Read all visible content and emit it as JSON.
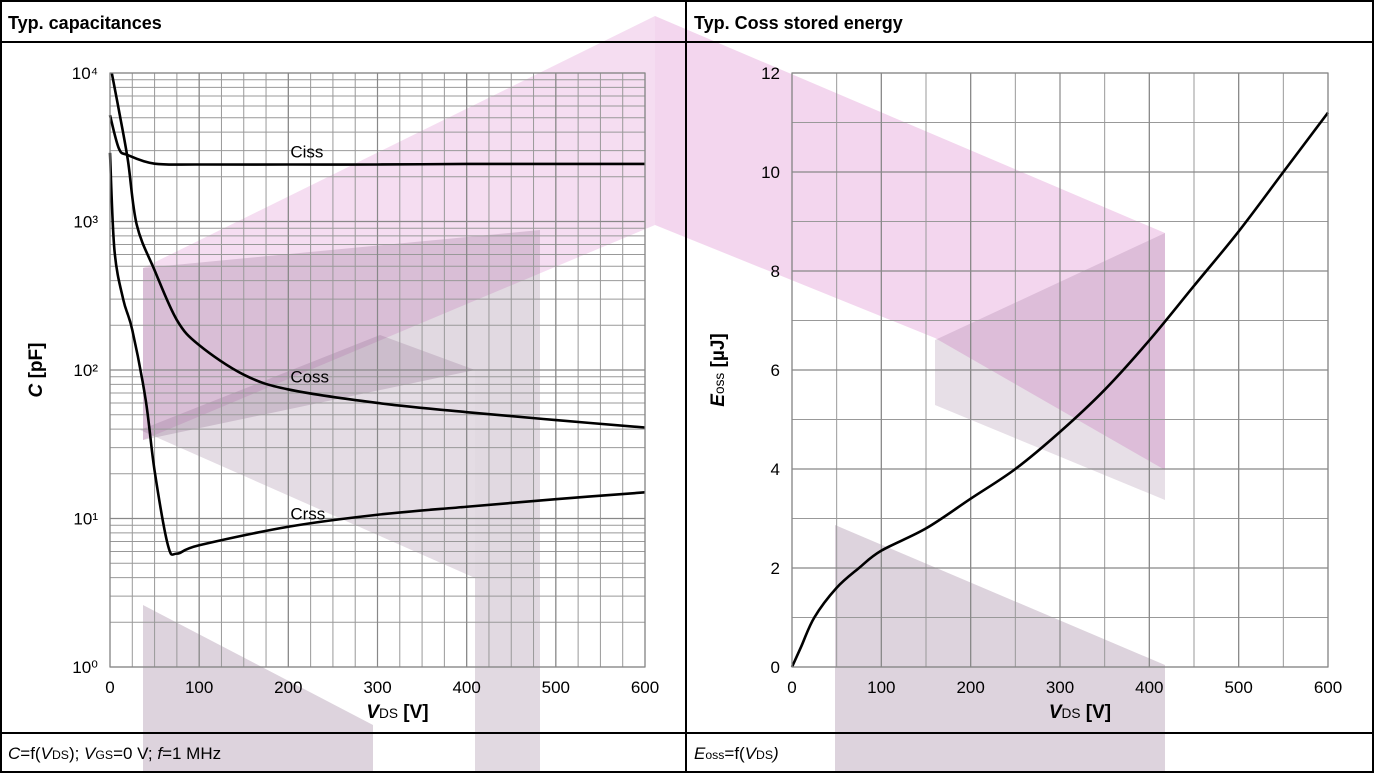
{
  "chart_data": [
    {
      "type": "line",
      "title": "Typ. capacitances",
      "footer": [
        {
          "text": "C",
          "italic": true
        },
        {
          "text": "=f("
        },
        {
          "text": "V",
          "italic": true
        },
        {
          "text": "DS",
          "sub": true
        },
        {
          "text": "); "
        },
        {
          "text": "V",
          "italic": true
        },
        {
          "text": "GS",
          "sub": true
        },
        {
          "text": "=0 V; "
        },
        {
          "text": "f",
          "italic": true
        },
        {
          "text": "=1 MHz"
        }
      ],
      "xlabel": [
        {
          "text": "V",
          "italic": true
        },
        {
          "text": "DS",
          "sub": true
        },
        {
          "text": " [V]"
        }
      ],
      "ylabel": [
        {
          "text": "C",
          "italic": true
        },
        {
          "text": " [pF]"
        }
      ],
      "yscale": "log",
      "xlim": [
        0,
        600
      ],
      "ylim": [
        1,
        10000
      ],
      "xticks": [
        0,
        100,
        200,
        300,
        400,
        500,
        600
      ],
      "yticks": [
        {
          "value": 1,
          "label": "10⁰"
        },
        {
          "value": 10,
          "label": "10¹"
        },
        {
          "value": 100,
          "label": "10²"
        },
        {
          "value": 1000,
          "label": "10³"
        },
        {
          "value": 10000,
          "label": "10⁴"
        }
      ],
      "xgrid": [
        0,
        25,
        50,
        75,
        100,
        125,
        150,
        175,
        200,
        225,
        250,
        275,
        300,
        325,
        350,
        375,
        400,
        425,
        450,
        475,
        500,
        525,
        550,
        575,
        600
      ],
      "ygrid": [
        2,
        3,
        4,
        5,
        6,
        7,
        8,
        9,
        20,
        30,
        40,
        50,
        60,
        70,
        80,
        90,
        200,
        300,
        400,
        500,
        600,
        700,
        800,
        900,
        2000,
        3000,
        4000,
        5000,
        6000,
        7000,
        8000,
        9000
      ],
      "series": [
        {
          "name": "Ciss",
          "color": "#000000",
          "x": [
            0,
            10,
            20,
            50,
            100,
            200,
            300,
            400,
            500,
            600
          ],
          "values": [
            5200,
            3100,
            2800,
            2450,
            2420,
            2420,
            2420,
            2440,
            2440,
            2440
          ]
        },
        {
          "name": "Coss",
          "color": "#000000",
          "x": [
            2,
            10,
            20,
            30,
            50,
            75,
            100,
            150,
            200,
            300,
            400,
            500,
            600
          ],
          "values": [
            10000,
            5600,
            2600,
            950,
            470,
            217,
            147,
            93,
            74,
            60,
            52,
            46,
            41
          ]
        },
        {
          "name": "Crss",
          "color": "#000000",
          "x": [
            0,
            5,
            15,
            25,
            40,
            50,
            65,
            75,
            100,
            200,
            300,
            400,
            500,
            600
          ],
          "values": [
            2900,
            640,
            296,
            186,
            63,
            21,
            6.6,
            5.8,
            6.6,
            8.8,
            10.6,
            12,
            13.5,
            15
          ]
        }
      ]
    },
    {
      "type": "line",
      "title": "Typ. Coss stored energy",
      "footer": [
        {
          "text": "E",
          "italic": true
        },
        {
          "text": "oss",
          "sub": true
        },
        {
          "text": "=f("
        },
        {
          "text": "V",
          "italic": true
        },
        {
          "text": "DS",
          "sub": true
        },
        {
          "text": ")",
          "italic": true
        }
      ],
      "xlabel": [
        {
          "text": "V",
          "italic": true
        },
        {
          "text": "DS",
          "sub": true
        },
        {
          "text": " [V]"
        }
      ],
      "ylabel": [
        {
          "text": "E",
          "italic": true
        },
        {
          "text": "oss",
          "sub": true
        },
        {
          "text": " [µJ]"
        }
      ],
      "yscale": "linear",
      "xlim": [
        0,
        600
      ],
      "ylim": [
        0,
        12
      ],
      "xticks": [
        0,
        100,
        200,
        300,
        400,
        500,
        600
      ],
      "yticks": [
        0,
        2,
        4,
        6,
        8,
        10,
        12
      ],
      "xgrid": [
        0,
        50,
        100,
        150,
        200,
        250,
        300,
        350,
        400,
        450,
        500,
        550,
        600
      ],
      "ygrid": [
        1,
        3,
        5,
        7,
        9,
        11
      ],
      "series": [
        {
          "name": "Eoss",
          "color": "#000000",
          "x": [
            0,
            10,
            25,
            50,
            75,
            100,
            150,
            200,
            250,
            300,
            350,
            400,
            450,
            500,
            550,
            600
          ],
          "values": [
            0,
            0.4,
            1.0,
            1.6,
            2.0,
            2.35,
            2.8,
            3.4,
            4.0,
            4.75,
            5.6,
            6.6,
            7.7,
            8.8,
            10.0,
            11.2
          ]
        }
      ]
    }
  ]
}
